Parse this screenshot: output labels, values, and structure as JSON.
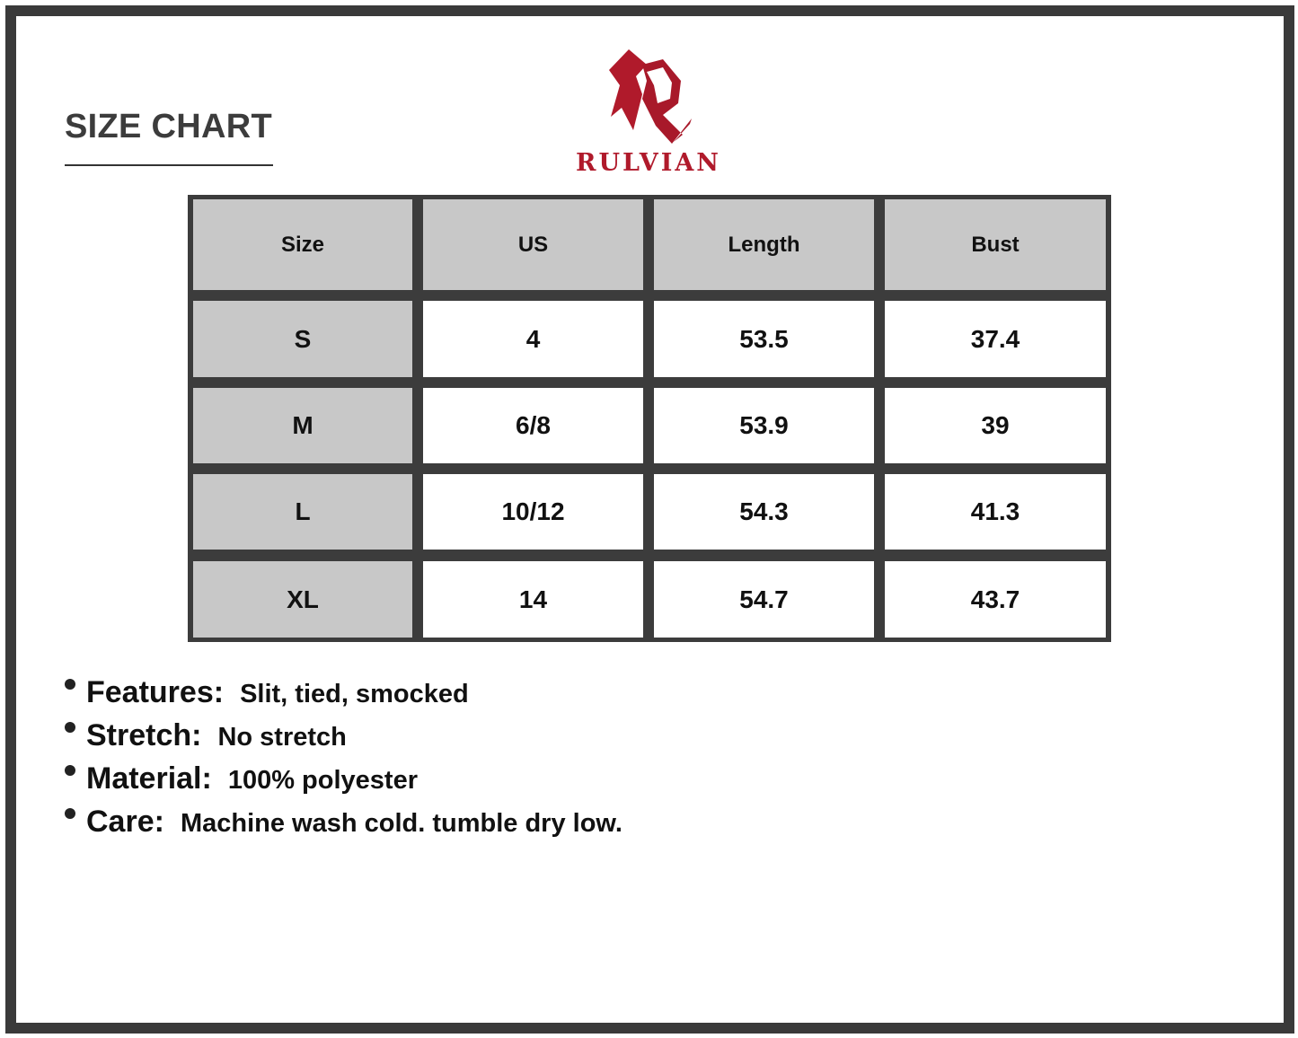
{
  "title": "SIZE CHART",
  "brand": {
    "name": "RULVIAN",
    "color": "#b01a2b"
  },
  "table": {
    "headers": [
      "Size",
      "US",
      "Length",
      "Bust"
    ],
    "rows": [
      [
        "S",
        "4",
        "53.5",
        "37.4"
      ],
      [
        "M",
        "6/8",
        "53.9",
        "39"
      ],
      [
        "L",
        "10/12",
        "54.3",
        "41.3"
      ],
      [
        "XL",
        "14",
        "54.7",
        "43.7"
      ]
    ]
  },
  "details": [
    {
      "label": "Features:",
      "value": "Slit, tied, smocked"
    },
    {
      "label": "Stretch:",
      "value": "No stretch"
    },
    {
      "label": "Material:",
      "value": "100% polyester"
    },
    {
      "label": "Care:",
      "value": "Machine wash cold. tumble dry low."
    }
  ]
}
